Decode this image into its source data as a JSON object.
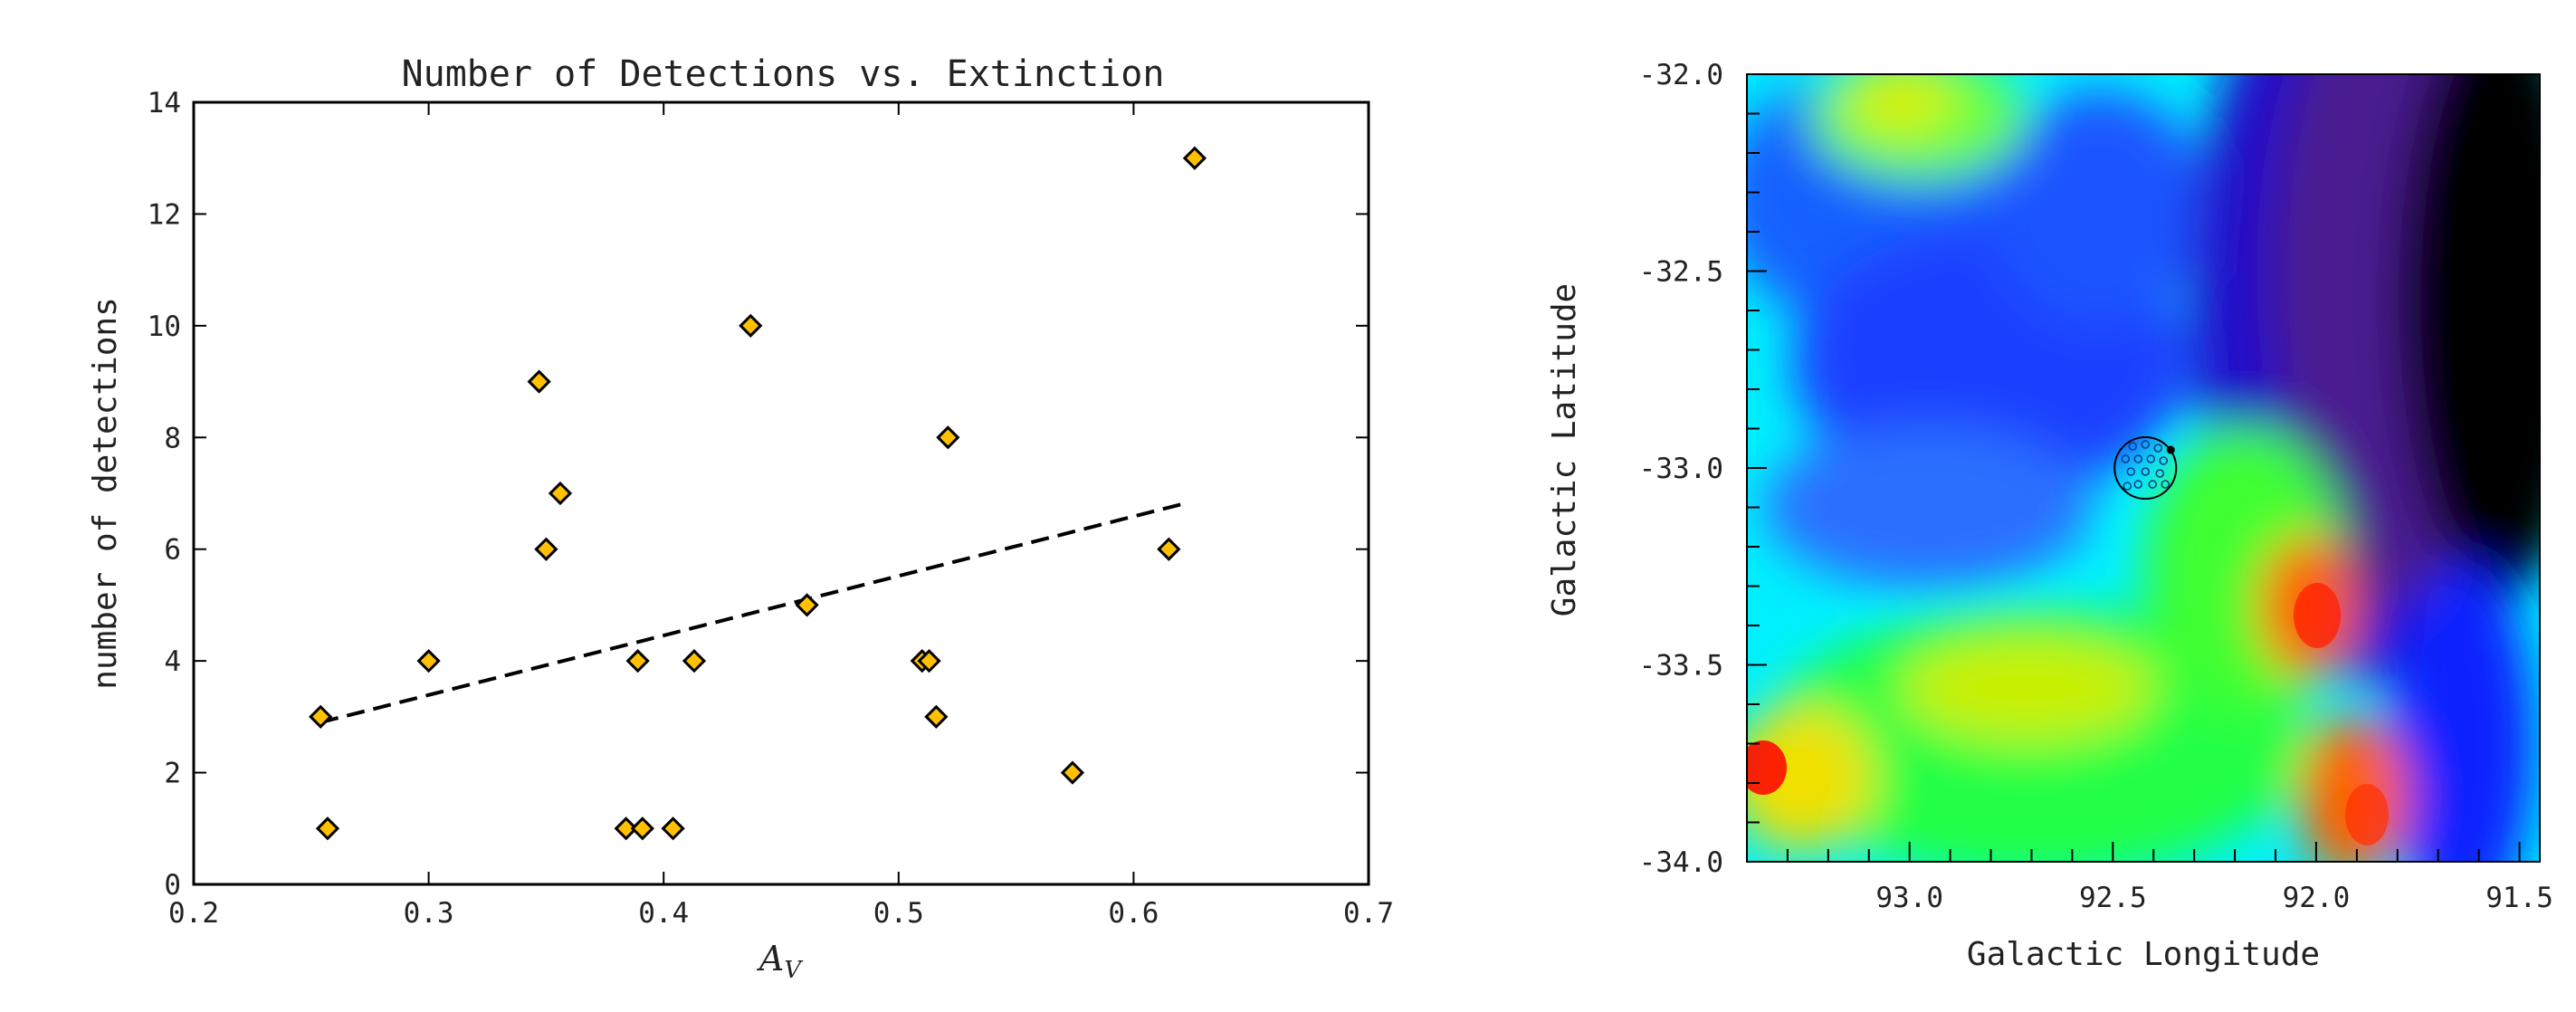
{
  "chart_data": [
    {
      "type": "scatter",
      "title": "Number of Detections vs. Extinction",
      "xlabel_symbol": "A",
      "xlabel_subscript": "V",
      "ylabel": "number of detections",
      "xlim": [
        0.2,
        0.7
      ],
      "ylim": [
        0,
        14
      ],
      "x_ticks": [
        "0.2",
        "0.3",
        "0.4",
        "0.5",
        "0.6",
        "0.7"
      ],
      "y_ticks": [
        "0",
        "2",
        "4",
        "6",
        "8",
        "10",
        "12",
        "14"
      ],
      "marker": "diamond",
      "marker_color": "#ffc000",
      "points": [
        {
          "x": 0.254,
          "y": 3
        },
        {
          "x": 0.257,
          "y": 1
        },
        {
          "x": 0.3,
          "y": 4
        },
        {
          "x": 0.347,
          "y": 9
        },
        {
          "x": 0.35,
          "y": 6
        },
        {
          "x": 0.356,
          "y": 7
        },
        {
          "x": 0.384,
          "y": 1
        },
        {
          "x": 0.389,
          "y": 4
        },
        {
          "x": 0.391,
          "y": 1
        },
        {
          "x": 0.404,
          "y": 1
        },
        {
          "x": 0.413,
          "y": 4
        },
        {
          "x": 0.437,
          "y": 10
        },
        {
          "x": 0.461,
          "y": 5
        },
        {
          "x": 0.51,
          "y": 4
        },
        {
          "x": 0.513,
          "y": 4
        },
        {
          "x": 0.516,
          "y": 3
        },
        {
          "x": 0.521,
          "y": 8
        },
        {
          "x": 0.574,
          "y": 2
        },
        {
          "x": 0.615,
          "y": 6
        },
        {
          "x": 0.626,
          "y": 13
        }
      ],
      "fit_line": {
        "style": "dashed",
        "color": "#000000",
        "x": [
          0.254,
          0.62
        ],
        "y": [
          2.9,
          6.8
        ]
      },
      "grid": false
    },
    {
      "type": "heatmap",
      "title": "",
      "xlabel": "Galactic Longitude",
      "ylabel": "Galactic Latitude",
      "xlim": [
        93.4,
        91.45
      ],
      "ylim": [
        -34.0,
        -32.0
      ],
      "x_ticks": [
        "93.0",
        "92.5",
        "92.0",
        "91.5"
      ],
      "y_ticks": [
        "-32.0",
        "-32.5",
        "-33.0",
        "-33.5",
        "-34.0"
      ],
      "colormap": "jet",
      "color_stops": [
        "#000000",
        "#5a1a8c",
        "#0a0aff",
        "#00e8ff",
        "#00ff66",
        "#d8f000",
        "#ff0000"
      ],
      "overlay_circle": {
        "l": 92.42,
        "b": -33.0,
        "radius_deg": 0.085,
        "color": "#000000"
      },
      "grid": false
    }
  ]
}
